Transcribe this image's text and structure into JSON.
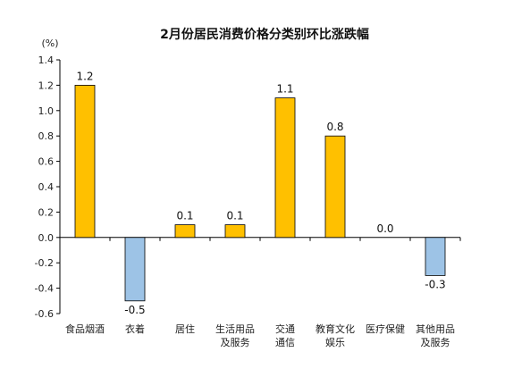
{
  "chart_data": {
    "type": "bar",
    "title": "2月份居民消费价格分类别环比涨跌幅",
    "unit_label": "(%)",
    "ylabel": "",
    "xlabel": "",
    "ylim": [
      -0.6,
      1.4
    ],
    "ytick_step": 0.2,
    "yticks": [
      "1.4",
      "1.2",
      "1.0",
      "0.8",
      "0.6",
      "0.4",
      "0.2",
      "0.0",
      "-0.2",
      "-0.4",
      "-0.6"
    ],
    "categories": [
      {
        "lines": [
          "食品烟酒"
        ]
      },
      {
        "lines": [
          "衣着"
        ]
      },
      {
        "lines": [
          "居住"
        ]
      },
      {
        "lines": [
          "生活用品",
          "及服务"
        ]
      },
      {
        "lines": [
          "交通",
          "通信"
        ]
      },
      {
        "lines": [
          "教育文化",
          "娱乐"
        ]
      },
      {
        "lines": [
          "医疗保健"
        ]
      },
      {
        "lines": [
          "其他用品",
          "及服务"
        ]
      }
    ],
    "values": [
      1.2,
      -0.5,
      0.1,
      0.1,
      1.1,
      0.8,
      0.0,
      -0.3
    ],
    "value_labels": [
      "1.2",
      "-0.5",
      "0.1",
      "0.1",
      "1.1",
      "0.8",
      "0.0",
      "-0.3"
    ],
    "grid": false,
    "legend": "none",
    "colors": {
      "positive": "#FFC000",
      "negative": "#9DC3E6",
      "bar_stroke": "#000000",
      "axis": "#000000"
    }
  }
}
